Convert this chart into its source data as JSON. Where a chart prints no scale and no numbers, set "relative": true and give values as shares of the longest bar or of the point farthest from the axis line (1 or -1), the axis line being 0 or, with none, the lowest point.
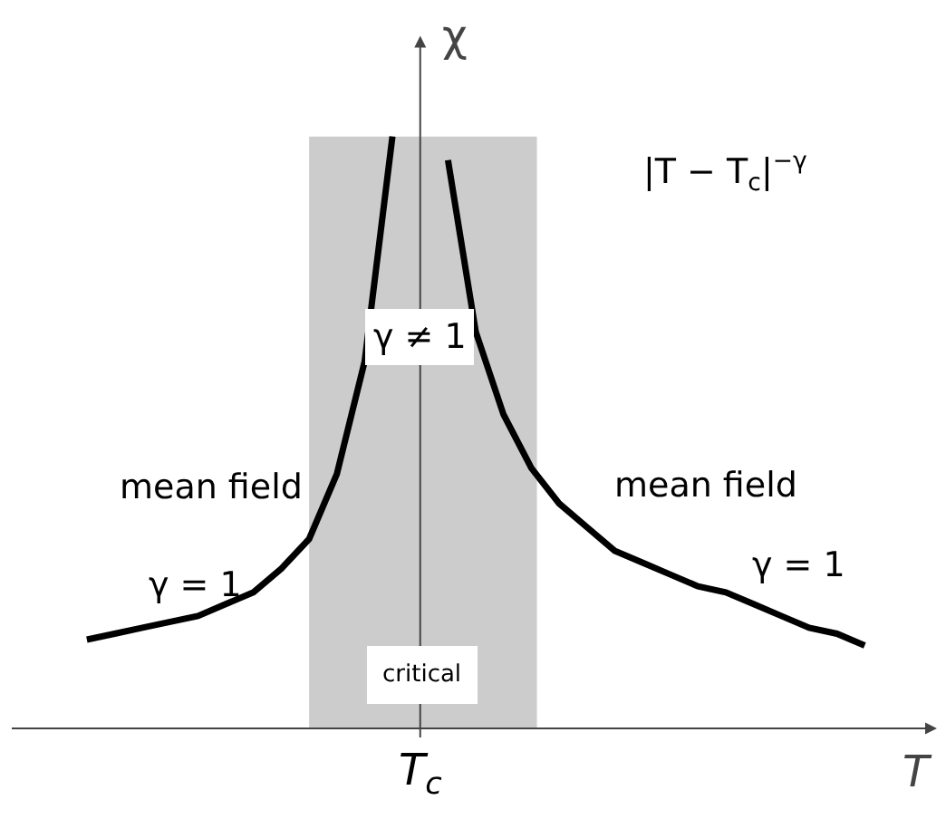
{
  "chart_data": {
    "type": "line",
    "relative": true,
    "xlabel": "T",
    "ylabel": "χ",
    "categories": [
      null,
      null,
      null,
      null,
      null,
      null,
      null,
      null,
      null,
      null,
      null,
      null,
      null,
      null,
      null,
      null,
      null,
      null,
      null,
      null,
      null,
      null,
      null,
      null,
      null,
      null,
      null,
      null,
      null
    ],
    "series": [
      {
        "color": "#000000",
        "values": [
          0.15,
          0.16,
          0.17,
          0.18,
          0.19,
          0.21,
          0.23,
          0.27,
          0.32,
          0.43,
          0.62,
          1,
          null,
          null,
          null,
          null,
          null,
          null,
          null,
          null,
          null,
          null,
          null,
          null,
          null,
          null,
          null,
          null,
          null
        ]
      },
      {
        "color": "#000000",
        "values": [
          null,
          null,
          null,
          null,
          null,
          null,
          null,
          null,
          null,
          null,
          null,
          null,
          null,
          0.96,
          0.67,
          0.53,
          0.44,
          0.38,
          0.34,
          0.3,
          0.28,
          0.26,
          0.24,
          0.23,
          0.21,
          0.19,
          0.17,
          0.16,
          0.14
        ]
      }
    ],
    "annotations": [
      "critical",
      "T$_{c}$",
      "|T − T$_{c}$|$^{−γ}$",
      "γ ≠ 1",
      "mean field",
      "mean field",
      "γ = 1",
      "γ = 1"
    ],
    "line_style": "solid",
    "marker": "none"
  }
}
